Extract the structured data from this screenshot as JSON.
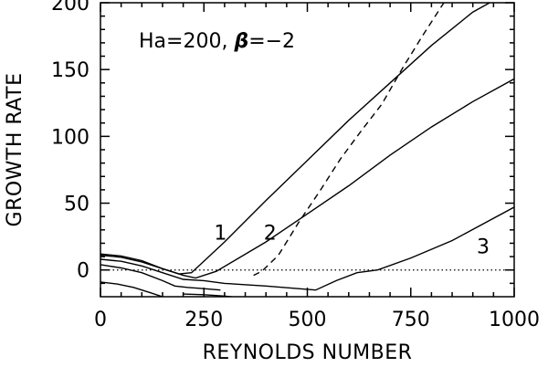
{
  "chart_data": {
    "type": "line",
    "xlabel": "REYNOLDS NUMBER",
    "ylabel": "GROWTH RATE",
    "xlim": [
      0,
      1000
    ],
    "ylim": [
      -20,
      200
    ],
    "xticks": [
      0,
      250,
      500,
      750,
      1000
    ],
    "yticks": [
      0,
      50,
      100,
      150,
      200
    ],
    "annotation": {
      "prefix": "Ha=200, ",
      "symbol": "β",
      "suffix": "=−2"
    },
    "reference_line": {
      "y": 0,
      "style": "dotted"
    },
    "series": [
      {
        "name": "1",
        "style": "solid",
        "label_at": [
          290,
          28
        ],
        "x": [
          0,
          50,
          100,
          150,
          190,
          220,
          300,
          400,
          500,
          600,
          700,
          800,
          900,
          970
        ],
        "y": [
          12,
          10.5,
          7,
          1,
          -3,
          -2,
          21,
          52,
          82,
          112,
          140,
          168,
          193,
          205
        ]
      },
      {
        "name": "2",
        "style": "solid",
        "label_at": [
          410,
          28
        ],
        "x": [
          0,
          50,
          100,
          150,
          200,
          230,
          280,
          400,
          500,
          600,
          700,
          800,
          900,
          1000
        ],
        "y": [
          11,
          9.5,
          6,
          1,
          -4,
          -6,
          -1,
          21,
          42,
          63,
          86,
          107,
          126,
          143
        ]
      },
      {
        "name": "3",
        "style": "solid",
        "label_at": [
          925,
          18
        ],
        "x": [
          0,
          50,
          100,
          150,
          200,
          250,
          300,
          400,
          520,
          570,
          620,
          670,
          750,
          850,
          1000
        ],
        "y": [
          8,
          6.5,
          3,
          -2,
          -7,
          -8,
          -10,
          -12,
          -15,
          -8,
          -2,
          0,
          9,
          22,
          47
        ]
      },
      {
        "name": "",
        "style": "solid",
        "x": [
          0,
          50,
          100,
          150,
          180,
          210,
          250,
          290
        ],
        "y": [
          4,
          1.5,
          -2,
          -8,
          -12,
          -13,
          -14,
          -15
        ]
      },
      {
        "name": "",
        "style": "solid",
        "x": [
          0,
          40,
          80,
          120,
          150,
          170
        ],
        "y": [
          -9,
          -10.5,
          -13,
          -17,
          -20,
          -22
        ]
      },
      {
        "name": "",
        "style": "solid",
        "x": [
          200,
          250,
          300,
          350,
          380
        ],
        "y": [
          -18,
          -18.5,
          -19.5,
          -21,
          -22
        ]
      },
      {
        "name": "",
        "style": "dashed",
        "x": [
          370,
          390,
          430,
          480,
          530,
          580,
          630,
          680,
          730,
          780,
          830
        ],
        "y": [
          -4,
          -1,
          11,
          36,
          59,
          83,
          104,
          124,
          151,
          176,
          200
        ]
      }
    ]
  }
}
